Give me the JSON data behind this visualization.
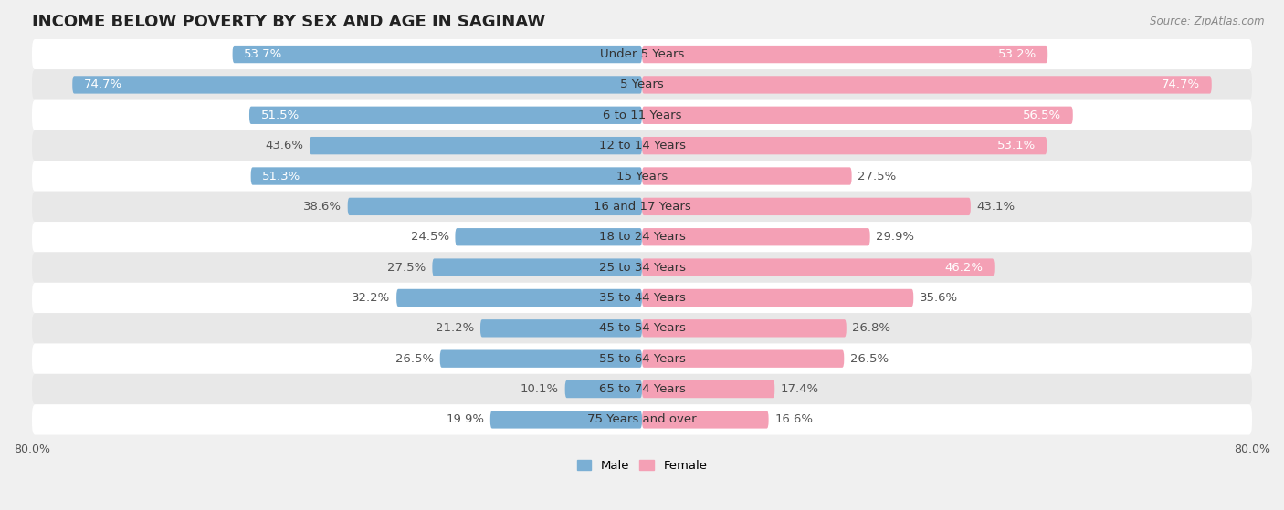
{
  "title": "INCOME BELOW POVERTY BY SEX AND AGE IN SAGINAW",
  "source": "Source: ZipAtlas.com",
  "categories": [
    "Under 5 Years",
    "5 Years",
    "6 to 11 Years",
    "12 to 14 Years",
    "15 Years",
    "16 and 17 Years",
    "18 to 24 Years",
    "25 to 34 Years",
    "35 to 44 Years",
    "45 to 54 Years",
    "55 to 64 Years",
    "65 to 74 Years",
    "75 Years and over"
  ],
  "male_values": [
    53.7,
    74.7,
    51.5,
    43.6,
    51.3,
    38.6,
    24.5,
    27.5,
    32.2,
    21.2,
    26.5,
    10.1,
    19.9
  ],
  "female_values": [
    53.2,
    74.7,
    56.5,
    53.1,
    27.5,
    43.1,
    29.9,
    46.2,
    35.6,
    26.8,
    26.5,
    17.4,
    16.6
  ],
  "male_color": "#7bafd4",
  "female_color": "#f4a0b5",
  "background_color": "#f0f0f0",
  "row_color_light": "#ffffff",
  "row_color_dark": "#e8e8e8",
  "max_value": 80.0,
  "title_fontsize": 13,
  "label_fontsize": 9.5,
  "tick_fontsize": 9,
  "bar_height": 0.58
}
